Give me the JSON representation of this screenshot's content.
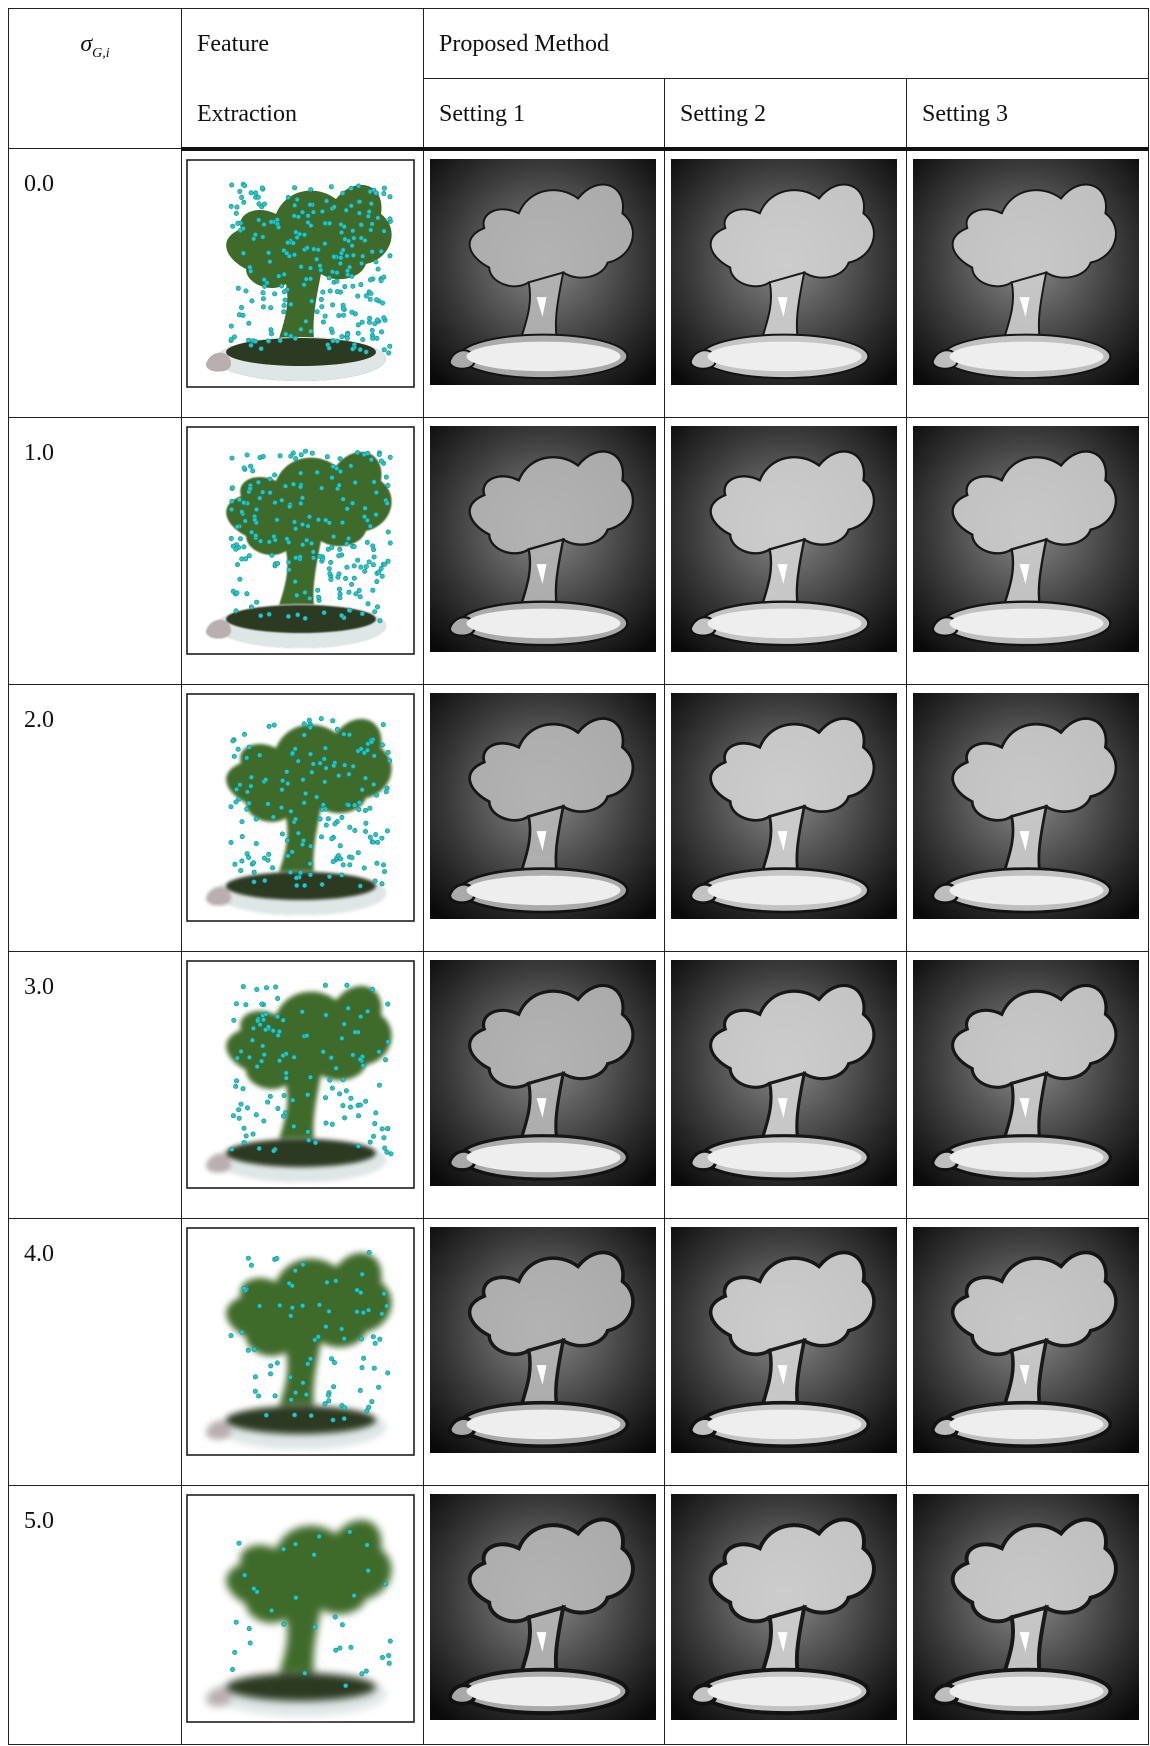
{
  "header": {
    "sigma": {
      "symbol": "σ",
      "subscript": "G,i"
    },
    "feature": "Feature",
    "extraction": "Extraction",
    "proposed": "Proposed Method",
    "settings": [
      "Setting 1",
      "Setting 2",
      "Setting 3"
    ]
  },
  "rows": [
    {
      "sigma": "0.0"
    },
    {
      "sigma": "1.0"
    },
    {
      "sigma": "2.0"
    },
    {
      "sigma": "3.0"
    },
    {
      "sigma": "4.0"
    },
    {
      "sigma": "5.0"
    }
  ]
}
